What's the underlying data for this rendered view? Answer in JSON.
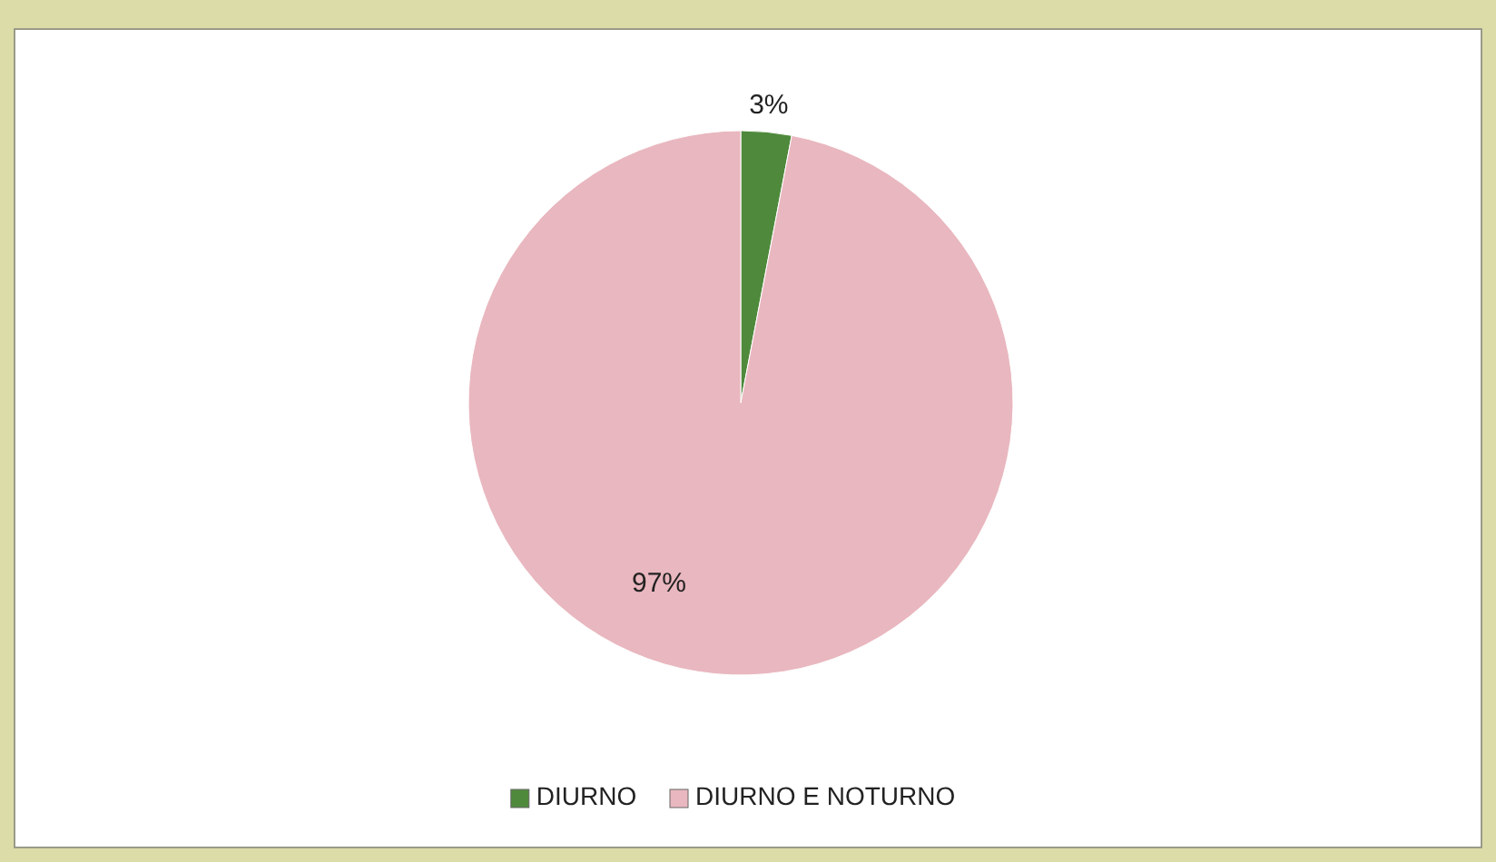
{
  "chart_data": {
    "type": "pie",
    "categories": [
      "DIURNO",
      "DIURNO E NOTURNO"
    ],
    "values": [
      3,
      97
    ],
    "colors": [
      "#4f8a3c",
      "#e9b7bf"
    ],
    "value_labels": [
      "3%",
      "97%"
    ],
    "legend": "bottom"
  }
}
